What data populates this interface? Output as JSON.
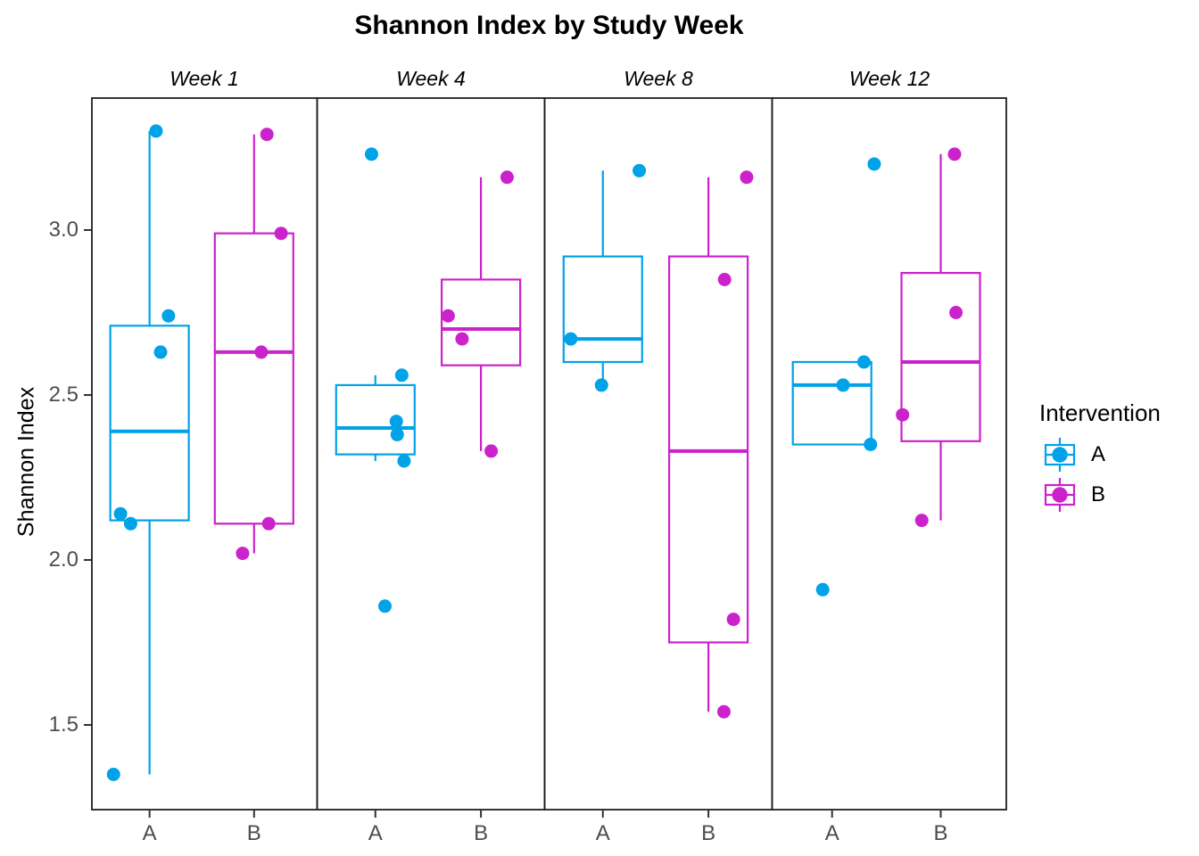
{
  "title": "Shannon Index by Study Week",
  "y_axis": {
    "title": "Shannon Index",
    "tick_labels": [
      "3.0",
      "2.5",
      "2.0",
      "1.5"
    ],
    "tick_values": [
      3.0,
      2.5,
      2.0,
      1.5
    ]
  },
  "x_axis": {
    "group_labels": [
      "A",
      "B"
    ]
  },
  "legend": {
    "title": "Intervention",
    "items": [
      {
        "label": "A",
        "color": "#00A2E8"
      },
      {
        "label": "B",
        "color": "#CC22CC"
      }
    ]
  },
  "colors": {
    "A": "#00A2E8",
    "B": "#CC22CC",
    "axis_text": "#4D4D4D",
    "tick_mark": "#333333",
    "panel_border": "#1F1F1F"
  },
  "chart_data": {
    "type": "boxplot",
    "subtype": "faceted-boxplot-with-jittered-points",
    "title": "Shannon Index by Study Week",
    "ylabel": "Shannon Index",
    "xlabel": "",
    "x_groups": [
      "A",
      "B"
    ],
    "y_ticks": [
      1.5,
      2.0,
      2.5,
      3.0
    ],
    "ylim": [
      1.24,
      3.4
    ],
    "grid": false,
    "legend_title": "Intervention",
    "legend_position": "right",
    "facets": [
      {
        "label": "Week 1",
        "groups": [
          {
            "name": "A",
            "box": {
              "q1": 2.12,
              "median": 2.39,
              "q3": 2.71,
              "whisker_low": 1.35,
              "whisker_high": 3.3
            },
            "points": [
              {
                "v": 3.3,
                "jx": 0.285
              },
              {
                "v": 2.74,
                "jx": 0.34
              },
              {
                "v": 2.63,
                "jx": 0.305
              },
              {
                "v": 2.14,
                "jx": 0.127
              },
              {
                "v": 2.11,
                "jx": 0.172
              },
              {
                "v": 1.35,
                "jx": 0.096
              }
            ]
          },
          {
            "name": "B",
            "box": {
              "q1": 2.11,
              "median": 2.63,
              "q3": 2.99,
              "whisker_low": 2.02,
              "whisker_high": 3.29
            },
            "points": [
              {
                "v": 3.29,
                "jx": 0.777
              },
              {
                "v": 2.99,
                "jx": 0.84
              },
              {
                "v": 2.63,
                "jx": 0.752
              },
              {
                "v": 2.11,
                "jx": 0.785
              },
              {
                "v": 2.02,
                "jx": 0.669
              }
            ]
          }
        ]
      },
      {
        "label": "Week 4",
        "groups": [
          {
            "name": "A",
            "box": {
              "q1": 2.32,
              "median": 2.4,
              "q3": 2.53,
              "whisker_low": 2.3,
              "whisker_high": 2.56
            },
            "points": [
              {
                "v": 3.23,
                "jx": 0.239
              },
              {
                "v": 2.56,
                "jx": 0.372
              },
              {
                "v": 2.42,
                "jx": 0.348
              },
              {
                "v": 2.38,
                "jx": 0.352
              },
              {
                "v": 2.3,
                "jx": 0.382
              },
              {
                "v": 1.86,
                "jx": 0.298
              }
            ]
          },
          {
            "name": "B",
            "box": {
              "q1": 2.59,
              "median": 2.7,
              "q3": 2.85,
              "whisker_low": 2.33,
              "whisker_high": 3.16
            },
            "points": [
              {
                "v": 3.16,
                "jx": 0.835
              },
              {
                "v": 2.74,
                "jx": 0.576
              },
              {
                "v": 2.67,
                "jx": 0.637
              },
              {
                "v": 2.33,
                "jx": 0.765
              }
            ]
          }
        ]
      },
      {
        "label": "Week 8",
        "groups": [
          {
            "name": "A",
            "box": {
              "q1": 2.6,
              "median": 2.67,
              "q3": 2.92,
              "whisker_low": 2.53,
              "whisker_high": 3.18
            },
            "points": [
              {
                "v": 3.18,
                "jx": 0.416
              },
              {
                "v": 2.67,
                "jx": 0.115
              },
              {
                "v": 2.53,
                "jx": 0.25
              }
            ]
          },
          {
            "name": "B",
            "box": {
              "q1": 1.75,
              "median": 2.33,
              "q3": 2.92,
              "whisker_low": 1.54,
              "whisker_high": 3.16
            },
            "points": [
              {
                "v": 3.16,
                "jx": 0.888
              },
              {
                "v": 2.85,
                "jx": 0.791
              },
              {
                "v": 1.82,
                "jx": 0.83
              },
              {
                "v": 1.54,
                "jx": 0.788
              }
            ]
          }
        ]
      },
      {
        "label": "Week 12",
        "groups": [
          {
            "name": "A",
            "box": {
              "q1": 2.35,
              "median": 2.53,
              "q3": 2.6,
              "whisker_low": 2.35,
              "whisker_high": 2.6
            },
            "points": [
              {
                "v": 3.2,
                "jx": 0.436
              },
              {
                "v": 2.6,
                "jx": 0.392
              },
              {
                "v": 2.53,
                "jx": 0.303
              },
              {
                "v": 2.35,
                "jx": 0.42
              },
              {
                "v": 1.91,
                "jx": 0.216
              }
            ]
          },
          {
            "name": "B",
            "box": {
              "q1": 2.36,
              "median": 2.6,
              "q3": 2.87,
              "whisker_low": 2.12,
              "whisker_high": 3.23
            },
            "points": [
              {
                "v": 3.23,
                "jx": 0.779
              },
              {
                "v": 2.75,
                "jx": 0.785
              },
              {
                "v": 2.44,
                "jx": 0.557
              },
              {
                "v": 2.12,
                "jx": 0.639
              }
            ]
          }
        ]
      }
    ]
  }
}
